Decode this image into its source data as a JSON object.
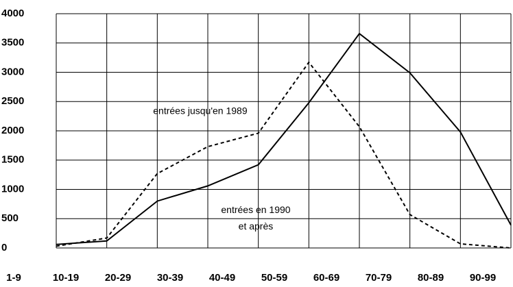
{
  "chart_data": {
    "type": "line",
    "categories": [
      "1-9",
      "10-19",
      "20-29",
      "30-39",
      "40-49",
      "50-59",
      "60-69",
      "70-79",
      "80-89",
      "90-99"
    ],
    "series": [
      {
        "color": "#000000",
        "dash": "solid",
        "values": [
          60,
          120,
          800,
          1060,
          1420,
          2480,
          3660,
          2990,
          1980,
          390
        ]
      },
      {
        "color": "#000000",
        "dash": "dashed",
        "values": [
          30,
          170,
          1270,
          1730,
          1960,
          3170,
          2070,
          570,
          70,
          0
        ]
      }
    ],
    "annotations": [
      {
        "text": "entrées jusqu'en 1989",
        "x": 2.85,
        "y": 2330
      },
      {
        "text": "entrées en 1990",
        "x": 3.95,
        "y": 640
      },
      {
        "text": "et après",
        "x": 3.95,
        "y": 360
      }
    ],
    "ylim": [
      0,
      4000
    ],
    "yticks": [
      0,
      500,
      1000,
      1500,
      2000,
      2500,
      3000,
      3500,
      4000
    ],
    "grid": true
  }
}
